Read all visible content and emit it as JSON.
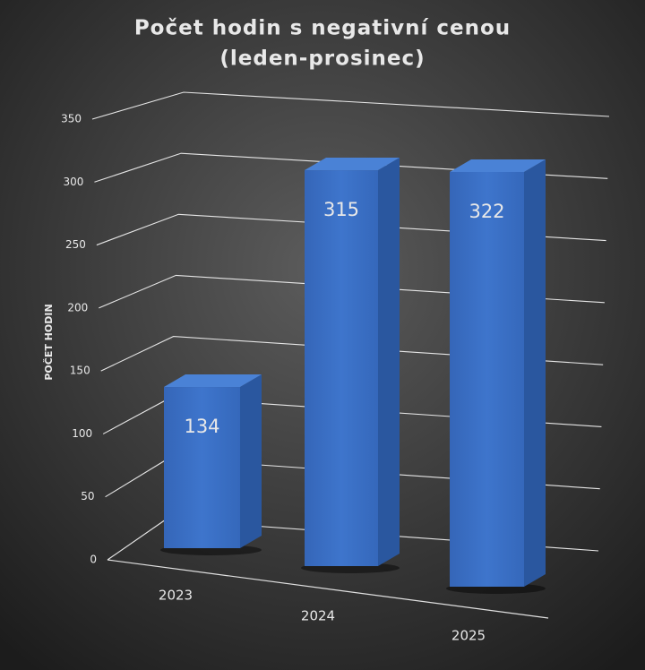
{
  "chart_data": {
    "type": "bar3d",
    "title": "Počet hodin s negativní cenou",
    "subtitle": "(leden-prosinec)",
    "y_label": "POČET HODIN",
    "categories": [
      "2023",
      "2024",
      "2025"
    ],
    "values": [
      134,
      315,
      322
    ],
    "color": "#3a6fc4",
    "ylim": [
      0,
      350
    ],
    "yticks": [
      0,
      50,
      100,
      150,
      200,
      250,
      300,
      350
    ],
    "grid": true
  }
}
